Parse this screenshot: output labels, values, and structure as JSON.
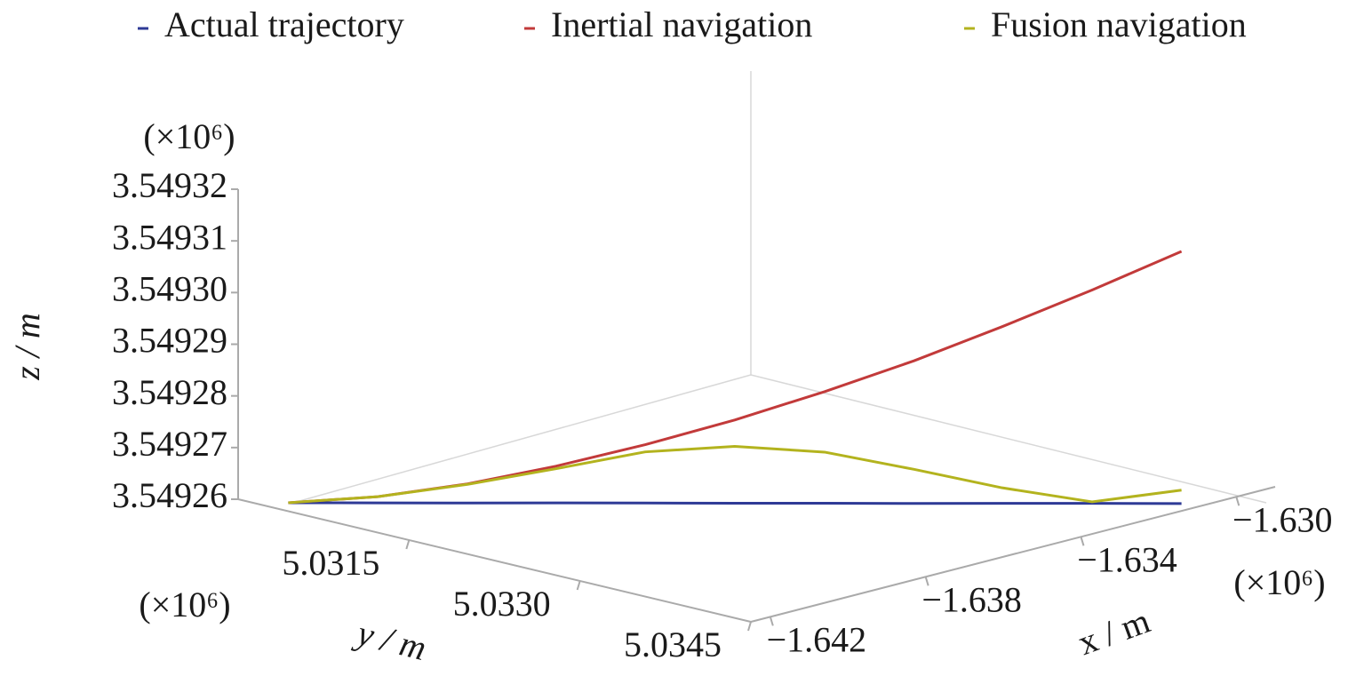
{
  "chart_data": {
    "type": "line3d",
    "legend_position": "top",
    "series": [
      {
        "name": "Actual trajectory",
        "color": "#2e3a96",
        "x": [
          -1.64206,
          -1.64096,
          -1.63985,
          -1.63875,
          -1.63765,
          -1.63655,
          -1.63544,
          -1.63434,
          -1.63324,
          -1.63213,
          -1.63103
        ],
        "y": [
          5.03029,
          5.0307,
          5.03111,
          5.03151,
          5.03192,
          5.03233,
          5.03274,
          5.03315,
          5.03355,
          5.03396,
          5.03437
        ],
        "z": [
          3.54926,
          3.54926,
          3.54926,
          3.54926,
          3.54926,
          3.54926,
          3.54926,
          3.54926,
          3.54926,
          3.54926,
          3.54926
        ]
      },
      {
        "name": "Inertial navigation",
        "color": "#c23a3a",
        "x": [
          -1.64206,
          -1.64096,
          -1.63985,
          -1.63875,
          -1.63765,
          -1.63655,
          -1.63544,
          -1.63434,
          -1.63324,
          -1.63213,
          -1.63103
        ],
        "y": [
          5.03029,
          5.0307,
          5.03111,
          5.03151,
          5.03192,
          5.03233,
          5.03274,
          5.03315,
          5.03355,
          5.03396,
          5.03437
        ],
        "z": [
          3.54926,
          3.5492612,
          3.5492637,
          3.5492671,
          3.5492713,
          3.5492761,
          3.5492816,
          3.5492876,
          3.5492942,
          3.5493013,
          3.5493088
        ]
      },
      {
        "name": "Fusion navigation",
        "color": "#b3b31e",
        "x": [
          -1.64206,
          -1.64096,
          -1.63985,
          -1.63875,
          -1.63765,
          -1.63655,
          -1.63544,
          -1.63434,
          -1.63324,
          -1.63213,
          -1.63103
        ],
        "y": [
          5.03029,
          5.0307,
          5.03111,
          5.03151,
          5.03192,
          5.03233,
          5.03274,
          5.03315,
          5.03355,
          5.03396,
          5.03437
        ],
        "z": [
          3.54926,
          3.5492612,
          3.5492636,
          3.5492666,
          3.5492699,
          3.549271,
          3.5492699,
          3.5492666,
          3.549263,
          3.5492603,
          3.5492626
        ]
      }
    ],
    "xlim": [
      -1.6425,
      -1.629
    ],
    "ylim": [
      5.03,
      5.0345
    ],
    "zlim": [
      3.54926,
      3.54932
    ],
    "xticks": [
      {
        "value": -1.642,
        "label": "−1.642"
      },
      {
        "value": -1.638,
        "label": "−1.638"
      },
      {
        "value": -1.634,
        "label": "−1.634"
      },
      {
        "value": -1.63,
        "label": "−1.630"
      }
    ],
    "yticks": [
      5.0315,
      {
        "value": 5.033,
        "label": "5.0330"
      },
      5.0345
    ],
    "zticks": [
      3.54926,
      3.54927,
      3.54928,
      3.54929,
      {
        "value": 3.5493,
        "label": "3.54930"
      },
      3.54931,
      3.54932
    ],
    "x_label": "x / m",
    "y_label": "y / m",
    "z_label": "z / m",
    "x_multiplier": "(×10⁶)",
    "y_multiplier": "(×10⁶)",
    "z_multiplier": "(×10⁶)"
  }
}
